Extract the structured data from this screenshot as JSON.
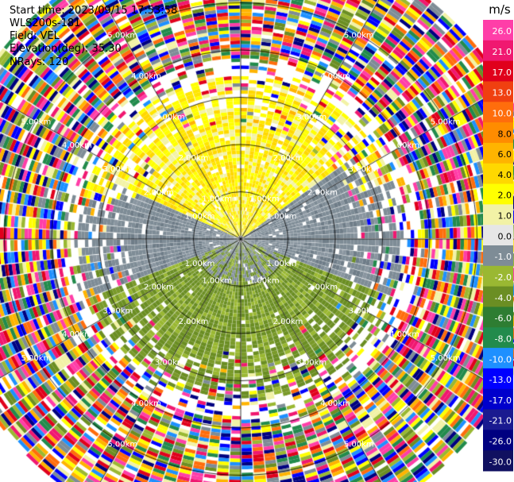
{
  "header": {
    "start_time": "Start time: 2023/09/15 17:53:58",
    "instrument": "WLS200s-181",
    "field": "Field: VEL",
    "elevation": "Elevation(deg): 35.30",
    "nrays": "NRays: 120"
  },
  "chart_data": {
    "type": "heatmap",
    "projection": "polar-ppi",
    "field": "VEL",
    "units": "m/s",
    "n_rays": 120,
    "range_rings_km": [
      1,
      2,
      3,
      4,
      5
    ],
    "ring_labels": [
      "1.00km",
      "2.00km",
      "3.00km",
      "4.00km",
      "5.00km"
    ],
    "max_range_km": 6.4,
    "colorbar": {
      "label": "m/s",
      "ticks": [
        "26.0",
        "21.0",
        "17.0",
        "13.0",
        "10.0",
        "8.0",
        "6.0",
        "4.0",
        "2.0",
        "1.0",
        "0.0",
        "-1.0",
        "-2.0",
        "-4.0",
        "-6.0",
        "-8.0",
        "-10.0",
        "-13.0",
        "-17.0",
        "-21.0",
        "-26.0",
        "-30.0"
      ],
      "colors": [
        "#ff3ea8",
        "#f01870",
        "#e0001c",
        "#f04010",
        "#ff6d0c",
        "#ff8c00",
        "#ffb400",
        "#ffd800",
        "#ffff00",
        "#f2f2a6",
        "#e6e6e6",
        "#7e8c96",
        "#9ab832",
        "#6b8e23",
        "#2e7d32",
        "#228b4c",
        "#1e90ff",
        "#0000ff",
        "#0000cc",
        "#1a1a90",
        "#000080",
        "#101060"
      ]
    },
    "noise_palette": [
      "#ff3ea8",
      "#f01870",
      "#e0001c",
      "#ff6d0c",
      "#ffb400",
      "#ffff00",
      "#f2f2a6",
      "#7e8c96",
      "#9ab832",
      "#6b8e23",
      "#228b4c",
      "#1e90ff",
      "#0000ff",
      "#000080",
      "#ffffff"
    ]
  }
}
